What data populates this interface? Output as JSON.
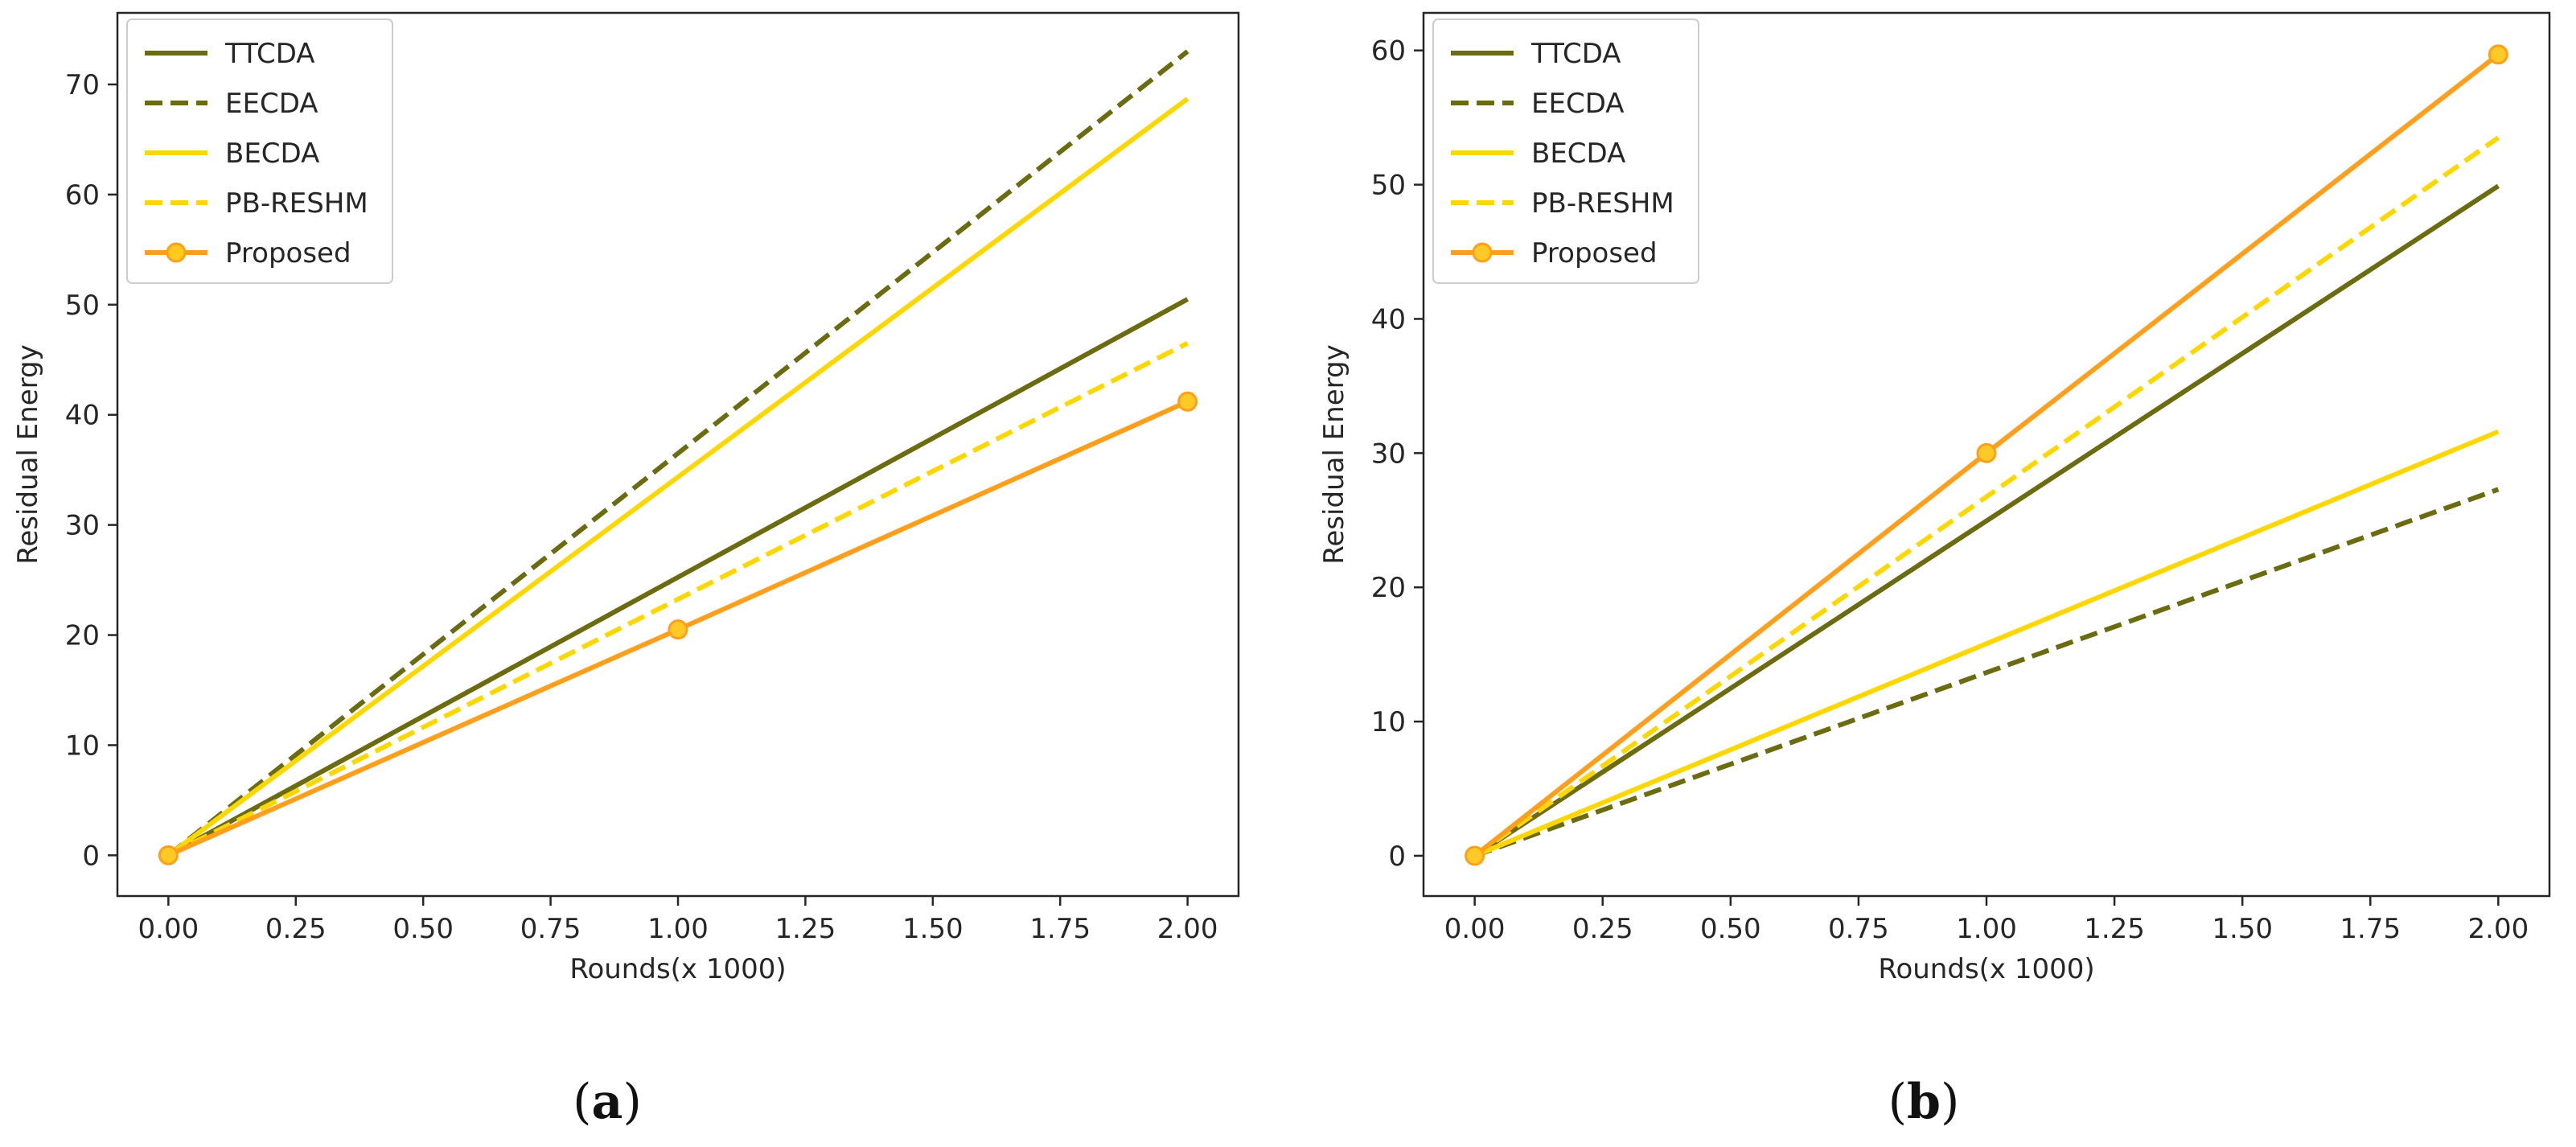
{
  "chart_data": [
    {
      "type": "line",
      "panel": "a",
      "caption_letter": "a",
      "xlabel": "Rounds(x 1000)",
      "ylabel": "Residual Energy",
      "xlim": [
        -0.1,
        2.1
      ],
      "ylim": [
        -3.7,
        76.5
      ],
      "xticks": [
        0.0,
        0.25,
        0.5,
        0.75,
        1.0,
        1.25,
        1.5,
        1.75,
        2.0
      ],
      "xtick_labels": [
        "0.00",
        "0.25",
        "0.50",
        "0.75",
        "1.00",
        "1.25",
        "1.50",
        "1.75",
        "2.00"
      ],
      "yticks": [
        0,
        10,
        20,
        30,
        40,
        50,
        60,
        70
      ],
      "ytick_labels": [
        "0",
        "10",
        "20",
        "30",
        "40",
        "50",
        "60",
        "70"
      ],
      "grid": false,
      "legend_position": "top-left",
      "series": [
        {
          "name": "TTCDA",
          "x": [
            0,
            2
          ],
          "y": [
            0,
            50.5
          ],
          "color": "#6b6b10",
          "dash": "solid",
          "markers": false
        },
        {
          "name": "EECDA",
          "x": [
            0,
            2
          ],
          "y": [
            0,
            73
          ],
          "color": "#6b6b10",
          "dash": "dashed",
          "markers": false
        },
        {
          "name": "BECDA",
          "x": [
            0,
            2
          ],
          "y": [
            0,
            68.7
          ],
          "color": "#ffd700",
          "dash": "solid",
          "markers": false
        },
        {
          "name": "PB-RESHM",
          "x": [
            0,
            2
          ],
          "y": [
            0,
            46.5
          ],
          "color": "#ffd700",
          "dash": "dashed",
          "markers": false
        },
        {
          "name": "Proposed",
          "x": [
            0,
            1,
            2
          ],
          "y": [
            0,
            20.5,
            41.2
          ],
          "color": "#ff9f1c",
          "dash": "solid",
          "markers": true,
          "marker_face": "#ffc926"
        }
      ]
    },
    {
      "type": "line",
      "panel": "b",
      "caption_letter": "b",
      "xlabel": "Rounds(x 1000)",
      "ylabel": "Residual Energy",
      "xlim": [
        -0.1,
        2.1
      ],
      "ylim": [
        -3.0,
        62.8
      ],
      "xticks": [
        0.0,
        0.25,
        0.5,
        0.75,
        1.0,
        1.25,
        1.5,
        1.75,
        2.0
      ],
      "xtick_labels": [
        "0.00",
        "0.25",
        "0.50",
        "0.75",
        "1.00",
        "1.25",
        "1.50",
        "1.75",
        "2.00"
      ],
      "yticks": [
        0,
        10,
        20,
        30,
        40,
        50,
        60
      ],
      "ytick_labels": [
        "0",
        "10",
        "20",
        "30",
        "40",
        "50",
        "60"
      ],
      "grid": false,
      "legend_position": "top-left",
      "series": [
        {
          "name": "TTCDA",
          "x": [
            0,
            2
          ],
          "y": [
            0,
            49.9
          ],
          "color": "#6b6b10",
          "dash": "solid",
          "markers": false
        },
        {
          "name": "EECDA",
          "x": [
            0,
            2
          ],
          "y": [
            0,
            27.3
          ],
          "color": "#6b6b10",
          "dash": "dashed",
          "markers": false
        },
        {
          "name": "BECDA",
          "x": [
            0,
            2
          ],
          "y": [
            0,
            31.6
          ],
          "color": "#ffd700",
          "dash": "solid",
          "markers": false
        },
        {
          "name": "PB-RESHM",
          "x": [
            0,
            2
          ],
          "y": [
            0,
            53.5
          ],
          "color": "#ffd700",
          "dash": "dashed",
          "markers": false
        },
        {
          "name": "Proposed",
          "x": [
            0,
            1,
            2
          ],
          "y": [
            0,
            30,
            59.7
          ],
          "color": "#ff9f1c",
          "dash": "solid",
          "markers": true,
          "marker_face": "#ffc926"
        }
      ]
    }
  ]
}
